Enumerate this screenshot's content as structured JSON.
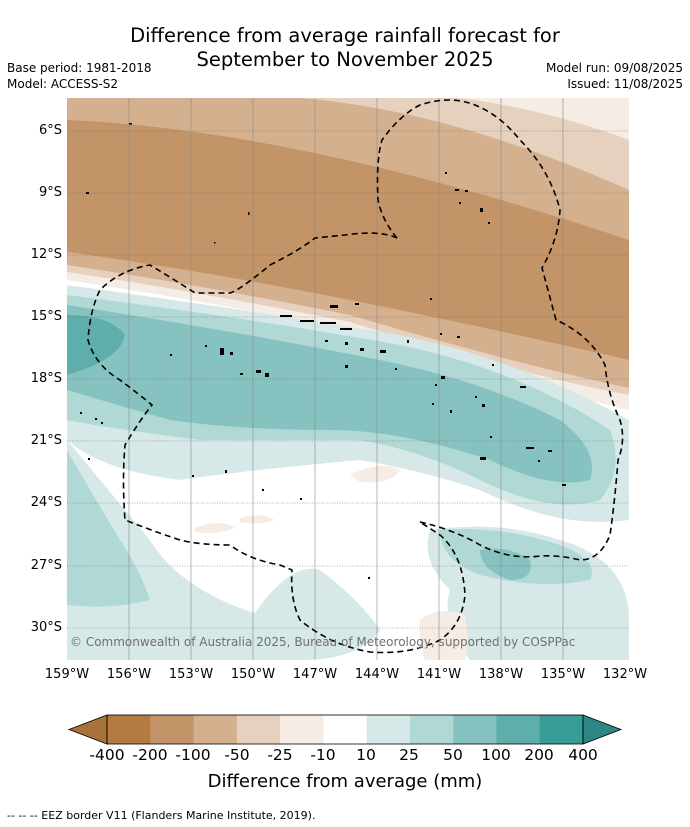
{
  "title": {
    "line1": "Difference from average rainfall forecast for",
    "line2": "September to November 2025"
  },
  "meta": {
    "base_period": "Base period: 1981-2018",
    "model": "Model: ACCESS-S2",
    "model_run": "Model run: 09/08/2025",
    "issued": "Issued: 11/08/2025"
  },
  "map": {
    "latitudes": [
      "6°S",
      "9°S",
      "12°S",
      "15°S",
      "18°S",
      "21°S",
      "24°S",
      "27°S",
      "30°S"
    ],
    "longitudes": [
      "159°W",
      "156°W",
      "153°W",
      "150°W",
      "147°W",
      "144°W",
      "141°W",
      "138°W",
      "135°W",
      "132°W"
    ],
    "copyright": "© Commonwealth of Australia 2025, Bureau of Meteorology, supported by COSPPac"
  },
  "colorbar": {
    "labels": [
      "-400",
      "-200",
      "-100",
      "-50",
      "-25",
      "-10",
      "10",
      "25",
      "50",
      "100",
      "200",
      "400"
    ],
    "colors": [
      "#a8733a",
      "#b47a40",
      "#c39467",
      "#d4b08f",
      "#e6d1be",
      "#f5ece6",
      "#ffffff",
      "#d6e9e8",
      "#b0d9d6",
      "#86c3c0",
      "#5eaeab",
      "#379b98",
      "#2e8683"
    ],
    "title": "Difference from average (mm)"
  },
  "footer": "--  --  -- EEZ border V11 (Flanders Marine Institute, 2019)."
}
